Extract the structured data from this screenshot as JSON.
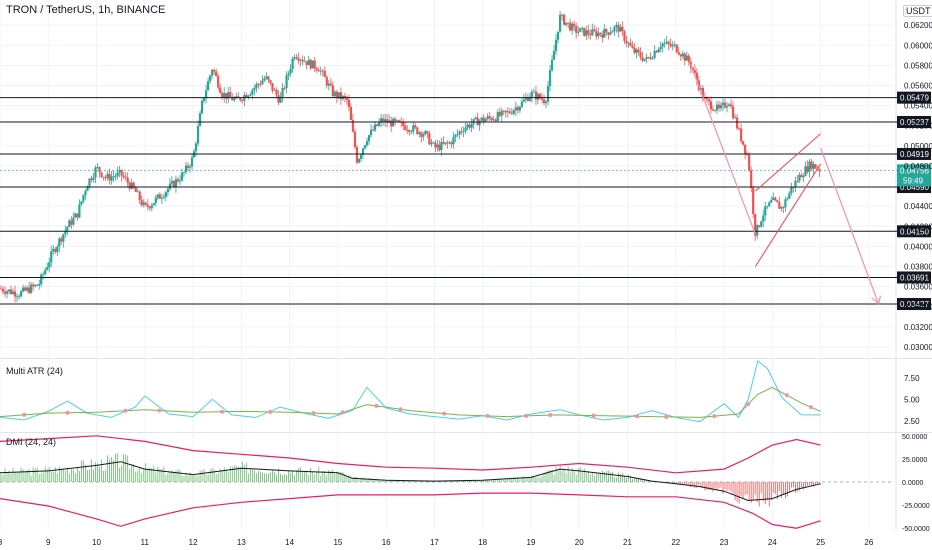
{
  "header": {
    "title": "TRON / TetherUS, 1h, BINANCE",
    "currency": "USDT"
  },
  "colors": {
    "up": "#26a69a",
    "down": "#ef5350",
    "level_line": "#131722",
    "level_label_bg": "#131722",
    "last_price_bg": "#26a69a",
    "atr_fast": "#4dd0e1",
    "atr_slow": "#7cb342",
    "atr_marker": "#f48fb1",
    "dmi_hist_pos": "#66bb6a",
    "dmi_hist_neg": "#ef5350",
    "dmi_band": "#e91e63",
    "dmi_line": "#131722",
    "channel": "#ef5350",
    "projection": "#f48fb1",
    "grid": "#f0f3fa",
    "axis_text": "#131722"
  },
  "chart_data": [
    {
      "type": "candlestick",
      "title": "TRON / TetherUS, 1h, BINANCE",
      "x_tick_labels": [
        "8",
        "9",
        "10",
        "11",
        "12",
        "13",
        "14",
        "15",
        "16",
        "17",
        "18",
        "19",
        "20",
        "21",
        "22",
        "23",
        "24",
        "25",
        "26"
      ],
      "y_tick_labels": [
        "0.06200",
        "0.06000",
        "0.05800",
        "0.05600",
        "0.05400",
        "0.05200",
        "0.05000",
        "0.04800",
        "0.04400",
        "0.04200",
        "0.04000",
        "0.03800",
        "0.03600",
        "0.03400",
        "0.03200",
        "0.03000"
      ],
      "y_tick_values": [
        0.062,
        0.06,
        0.058,
        0.056,
        0.054,
        0.052,
        0.05,
        0.048,
        0.044,
        0.042,
        0.04,
        0.038,
        0.036,
        0.034,
        0.032,
        0.03
      ],
      "ylim": [
        0.029,
        0.0645
      ],
      "xlim": [
        8,
        26.5
      ],
      "close_path": [
        [
          8.0,
          0.0358
        ],
        [
          8.4,
          0.0353
        ],
        [
          8.8,
          0.0362
        ],
        [
          9.1,
          0.0395
        ],
        [
          9.4,
          0.042
        ],
        [
          9.6,
          0.0432
        ],
        [
          9.8,
          0.0462
        ],
        [
          10.0,
          0.0478
        ],
        [
          10.2,
          0.0468
        ],
        [
          10.5,
          0.0472
        ],
        [
          10.8,
          0.0455
        ],
        [
          11.0,
          0.0438
        ],
        [
          11.2,
          0.0445
        ],
        [
          11.5,
          0.0458
        ],
        [
          11.8,
          0.0472
        ],
        [
          12.0,
          0.0488
        ],
        [
          12.2,
          0.0545
        ],
        [
          12.4,
          0.0578
        ],
        [
          12.6,
          0.0552
        ],
        [
          12.9,
          0.0545
        ],
        [
          13.2,
          0.0555
        ],
        [
          13.5,
          0.0568
        ],
        [
          13.8,
          0.0545
        ],
        [
          14.1,
          0.0592
        ],
        [
          14.4,
          0.0582
        ],
        [
          14.6,
          0.0578
        ],
        [
          14.9,
          0.0552
        ],
        [
          15.2,
          0.0545
        ],
        [
          15.4,
          0.0485
        ],
        [
          15.6,
          0.0508
        ],
        [
          15.9,
          0.0525
        ],
        [
          16.2,
          0.0522
        ],
        [
          16.5,
          0.0518
        ],
        [
          16.8,
          0.0512
        ],
        [
          17.0,
          0.0498
        ],
        [
          17.3,
          0.0502
        ],
        [
          17.6,
          0.0518
        ],
        [
          17.9,
          0.0525
        ],
        [
          18.2,
          0.0528
        ],
        [
          18.5,
          0.0532
        ],
        [
          18.8,
          0.0542
        ],
        [
          19.0,
          0.0552
        ],
        [
          19.3,
          0.0545
        ],
        [
          19.6,
          0.0628
        ],
        [
          19.9,
          0.0615
        ],
        [
          20.2,
          0.0612
        ],
        [
          20.5,
          0.0612
        ],
        [
          20.8,
          0.0618
        ],
        [
          21.1,
          0.0595
        ],
        [
          21.4,
          0.0585
        ],
        [
          21.7,
          0.0602
        ],
        [
          22.0,
          0.0598
        ],
        [
          22.3,
          0.0582
        ],
        [
          22.6,
          0.0545
        ],
        [
          22.9,
          0.0535
        ],
        [
          23.1,
          0.0545
        ],
        [
          23.3,
          0.0515
        ],
        [
          23.5,
          0.0488
        ],
        [
          23.65,
          0.0412
        ],
        [
          23.8,
          0.0432
        ],
        [
          24.0,
          0.0445
        ],
        [
          24.2,
          0.0438
        ],
        [
          24.4,
          0.0458
        ],
        [
          24.6,
          0.0472
        ],
        [
          24.8,
          0.0482
        ],
        [
          25.0,
          0.0476
        ]
      ],
      "horizontal_levels": [
        {
          "value": 0.05479,
          "label": "0.05479"
        },
        {
          "value": 0.05237,
          "label": "0.05237"
        },
        {
          "value": 0.04919,
          "label": "0.04919"
        },
        {
          "value": 0.0459,
          "label": "0.04590"
        },
        {
          "value": 0.0415,
          "label": "0.04150"
        },
        {
          "value": 0.03691,
          "label": "0.03691"
        },
        {
          "value": 0.03427,
          "label": "0.03427"
        }
      ],
      "last_price": {
        "value": 0.04756,
        "label": "0.04756",
        "countdown": "59:49"
      },
      "annotations": {
        "rising_channel": {
          "lower": [
            [
              23.65,
              0.038
            ],
            [
              25.0,
              0.0482
            ]
          ],
          "upper": [
            [
              23.65,
              0.0455
            ],
            [
              25.0,
              0.0512
            ]
          ]
        },
        "bear_flag_projection": {
          "from": [
            25.0,
            0.0498
          ],
          "to": [
            26.2,
            0.0343
          ]
        },
        "pole_line": {
          "from": [
            22.3,
            0.0582
          ],
          "to": [
            23.65,
            0.0412
          ]
        }
      }
    },
    {
      "type": "line",
      "title": "Multi ATR (24)",
      "y_tick_labels": [
        "7.50",
        "5.00",
        "2.50"
      ],
      "y_tick_values": [
        7.5,
        5.0,
        2.5
      ],
      "ylim": [
        1.2,
        9.6
      ],
      "series": [
        {
          "values": [
            [
              8,
              2.9
            ],
            [
              8.5,
              2.6
            ],
            [
              9,
              3.6
            ],
            [
              9.4,
              4.8
            ],
            [
              9.8,
              3.4
            ],
            [
              10.3,
              2.9
            ],
            [
              10.8,
              4.1
            ],
            [
              11.0,
              5.4
            ],
            [
              11.5,
              3.3
            ],
            [
              12.0,
              3.0
            ],
            [
              12.4,
              5.0
            ],
            [
              12.8,
              3.2
            ],
            [
              13.3,
              2.9
            ],
            [
              13.8,
              4.1
            ],
            [
              14.3,
              3.4
            ],
            [
              14.8,
              2.8
            ],
            [
              15.3,
              3.7
            ],
            [
              15.6,
              6.4
            ],
            [
              16.0,
              4.0
            ],
            [
              16.5,
              3.3
            ],
            [
              17.0,
              3.0
            ],
            [
              17.5,
              2.7
            ],
            [
              18.0,
              3.1
            ],
            [
              18.5,
              2.6
            ],
            [
              19.0,
              3.3
            ],
            [
              19.6,
              3.8
            ],
            [
              20.0,
              3.2
            ],
            [
              20.5,
              2.6
            ],
            [
              21.0,
              2.9
            ],
            [
              21.5,
              3.7
            ],
            [
              22.0,
              2.9
            ],
            [
              22.5,
              2.4
            ],
            [
              23.0,
              4.5
            ],
            [
              23.3,
              2.9
            ],
            [
              23.5,
              5.0
            ],
            [
              23.7,
              9.5
            ],
            [
              23.9,
              8.6
            ],
            [
              24.2,
              5.2
            ],
            [
              24.6,
              3.2
            ],
            [
              25.0,
              3.2
            ]
          ]
        },
        {
          "values": [
            [
              8,
              3.0
            ],
            [
              9,
              3.4
            ],
            [
              10,
              3.5
            ],
            [
              11,
              3.8
            ],
            [
              12,
              3.5
            ],
            [
              13,
              3.6
            ],
            [
              14,
              3.5
            ],
            [
              15,
              3.3
            ],
            [
              15.6,
              4.4
            ],
            [
              16.5,
              3.7
            ],
            [
              17.5,
              3.2
            ],
            [
              18.5,
              3.0
            ],
            [
              19.5,
              3.2
            ],
            [
              20.5,
              3.1
            ],
            [
              21.5,
              3.0
            ],
            [
              22.5,
              2.9
            ],
            [
              23.3,
              3.3
            ],
            [
              23.7,
              5.6
            ],
            [
              24.0,
              6.4
            ],
            [
              24.6,
              4.6
            ],
            [
              25.0,
              3.6
            ]
          ]
        }
      ]
    },
    {
      "type": "line",
      "title": "DMI (24, 24)",
      "y_tick_labels": [
        "50.0000",
        "25.0000",
        "0.0000",
        "-25.0000",
        "-50.0000"
      ],
      "y_tick_values": [
        50,
        25,
        0,
        -25,
        -50
      ],
      "ylim": [
        -52,
        52
      ],
      "series": [
        {
          "values": [
            [
              8,
              10
            ],
            [
              9,
              12
            ],
            [
              10,
              18
            ],
            [
              10.5,
              22
            ],
            [
              11,
              14
            ],
            [
              12,
              8
            ],
            [
              13,
              15
            ],
            [
              14,
              12
            ],
            [
              15,
              10
            ],
            [
              15.3,
              4
            ],
            [
              16,
              2
            ],
            [
              17,
              1
            ],
            [
              18,
              2
            ],
            [
              19,
              5
            ],
            [
              19.6,
              14
            ],
            [
              20,
              12
            ],
            [
              21,
              6
            ],
            [
              21.5,
              1
            ],
            [
              22,
              -2
            ],
            [
              22.5,
              -5
            ],
            [
              23,
              -10
            ],
            [
              23.5,
              -20
            ],
            [
              24,
              -18
            ],
            [
              24.5,
              -8
            ],
            [
              25,
              -2
            ]
          ]
        },
        {
          "values": [
            [
              8,
              44
            ],
            [
              9,
              47
            ],
            [
              10,
              50
            ],
            [
              11,
              44
            ],
            [
              12,
              34
            ],
            [
              13,
              30
            ],
            [
              14,
              26
            ],
            [
              15,
              20
            ],
            [
              16,
              16
            ],
            [
              17,
              15
            ],
            [
              18,
              13
            ],
            [
              19,
              16
            ],
            [
              20,
              20
            ],
            [
              21,
              16
            ],
            [
              22,
              10
            ],
            [
              23,
              14
            ],
            [
              23.5,
              26
            ],
            [
              24,
              40
            ],
            [
              24.5,
              46
            ],
            [
              25,
              40
            ]
          ]
        },
        {
          "values": [
            [
              8,
              -18
            ],
            [
              9,
              -26
            ],
            [
              10,
              -40
            ],
            [
              10.5,
              -48
            ],
            [
              11,
              -40
            ],
            [
              12,
              -28
            ],
            [
              13,
              -22
            ],
            [
              14,
              -18
            ],
            [
              15,
              -14
            ],
            [
              16,
              -14
            ],
            [
              17,
              -14
            ],
            [
              18,
              -12
            ],
            [
              19,
              -12
            ],
            [
              20,
              -14
            ],
            [
              21,
              -16
            ],
            [
              22,
              -16
            ],
            [
              23,
              -22
            ],
            [
              23.6,
              -34
            ],
            [
              24,
              -46
            ],
            [
              24.5,
              -50
            ],
            [
              25,
              -42
            ]
          ]
        }
      ]
    }
  ]
}
